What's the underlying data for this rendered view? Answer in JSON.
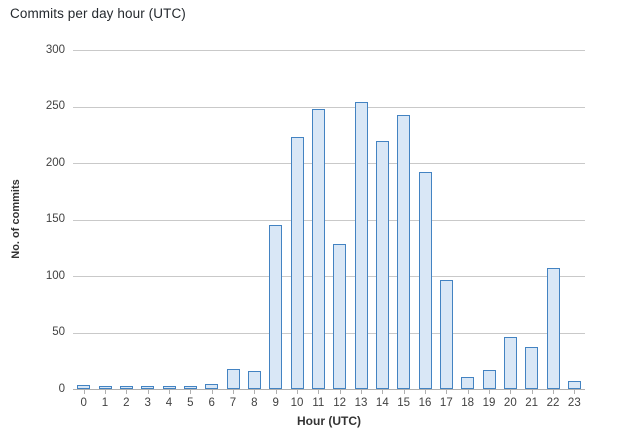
{
  "chart_data": {
    "type": "bar",
    "title": "Commits per day hour (UTC)",
    "xlabel": "Hour (UTC)",
    "ylabel": "No. of commits",
    "categories": [
      "0",
      "1",
      "2",
      "3",
      "4",
      "5",
      "6",
      "7",
      "8",
      "9",
      "10",
      "11",
      "12",
      "13",
      "14",
      "15",
      "16",
      "17",
      "18",
      "19",
      "20",
      "21",
      "22",
      "23"
    ],
    "values": [
      2,
      1,
      1,
      1,
      1,
      1,
      3,
      16,
      14,
      143,
      221,
      246,
      127,
      252,
      218,
      241,
      190,
      95,
      9,
      15,
      44,
      35,
      105,
      5
    ],
    "ylim": [
      0,
      300
    ],
    "yticks": [
      0,
      50,
      100,
      150,
      200,
      250,
      300
    ],
    "grid": true,
    "legend_position": "none",
    "colors": {
      "bar_fill": "#d9e7f6",
      "bar_border": "#4383c2",
      "gridline": "#c9c9c9",
      "axis_line": "#b0b0b0",
      "tick_mark": "#b0b0b0",
      "tick_label": "#424242",
      "axis_title": "#333333",
      "title_text": "#24292e",
      "background": "#ffffff"
    }
  }
}
